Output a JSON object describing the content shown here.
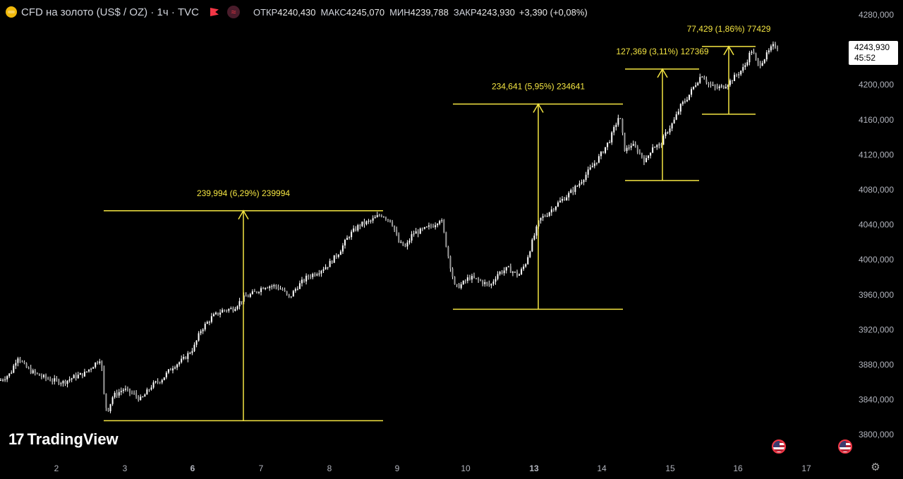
{
  "header": {
    "symbol": "CFD на золото (US$ / OZ) · 1ч · TVC",
    "open_label": "ОТКР",
    "open": "4240,430",
    "high_label": "МАКС",
    "high": "4245,070",
    "low_label": "МИН",
    "low": "4239,788",
    "close_label": "ЗАКР",
    "close": "4243,930",
    "change": "+3,390 (+0,08%)"
  },
  "price_tag": {
    "price": "4243,930",
    "countdown": "45:52"
  },
  "logo": {
    "text": "TradingView"
  },
  "colors": {
    "background": "#000000",
    "candle": "#ffffff",
    "measure": "#f5e642",
    "axis_text": "#b2b5be"
  },
  "icons": {
    "settings": "gear-icon",
    "event": "us-flag-icon",
    "alert": "flag-icon"
  },
  "chart_data": {
    "type": "candlestick",
    "ylim": [
      3780,
      4290
    ],
    "y_ticks": [
      "4280,000",
      "4240,000",
      "4200,000",
      "4160,000",
      "4120,000",
      "4080,000",
      "4040,000",
      "4000,000",
      "3960,000",
      "3920,000",
      "3880,000",
      "3840,000",
      "3800,000"
    ],
    "y_tick_values": [
      4280,
      4240,
      4200,
      4160,
      4120,
      4080,
      4040,
      4000,
      3960,
      3920,
      3880,
      3840,
      3800
    ],
    "x_ticks": [
      "2",
      "3",
      "6",
      "7",
      "8",
      "9",
      "10",
      "13",
      "14",
      "15",
      "16",
      "17"
    ],
    "x_tick_bold": [
      false,
      false,
      true,
      false,
      false,
      false,
      false,
      true,
      false,
      false,
      false,
      false
    ],
    "anchors": [
      [
        0,
        3862
      ],
      [
        15,
        3870
      ],
      [
        25,
        3890
      ],
      [
        35,
        3878
      ],
      [
        45,
        3872
      ],
      [
        60,
        3866
      ],
      [
        75,
        3862
      ],
      [
        90,
        3860
      ],
      [
        105,
        3866
      ],
      [
        120,
        3870
      ],
      [
        133,
        3880
      ],
      [
        143,
        3888
      ],
      [
        148,
        3840
      ],
      [
        152,
        3826
      ],
      [
        160,
        3844
      ],
      [
        175,
        3852
      ],
      [
        190,
        3846
      ],
      [
        200,
        3840
      ],
      [
        215,
        3856
      ],
      [
        230,
        3864
      ],
      [
        245,
        3878
      ],
      [
        260,
        3886
      ],
      [
        275,
        3900
      ],
      [
        285,
        3920
      ],
      [
        300,
        3934
      ],
      [
        315,
        3942
      ],
      [
        330,
        3944
      ],
      [
        345,
        3956
      ],
      [
        360,
        3962
      ],
      [
        375,
        3970
      ],
      [
        390,
        3970
      ],
      [
        400,
        3966
      ],
      [
        410,
        3956
      ],
      [
        420,
        3968
      ],
      [
        435,
        3980
      ],
      [
        450,
        3986
      ],
      [
        465,
        3994
      ],
      [
        480,
        4008
      ],
      [
        495,
        4028
      ],
      [
        510,
        4040
      ],
      [
        525,
        4044
      ],
      [
        540,
        4052
      ],
      [
        555,
        4044
      ],
      [
        565,
        4020
      ],
      [
        575,
        4014
      ],
      [
        585,
        4030
      ],
      [
        600,
        4034
      ],
      [
        615,
        4040
      ],
      [
        625,
        4048
      ],
      [
        635,
        4006
      ],
      [
        645,
        3968
      ],
      [
        655,
        3972
      ],
      [
        665,
        3980
      ],
      [
        680,
        3976
      ],
      [
        695,
        3970
      ],
      [
        705,
        3984
      ],
      [
        720,
        3990
      ],
      [
        735,
        3982
      ],
      [
        745,
        3996
      ],
      [
        755,
        4022
      ],
      [
        765,
        4046
      ],
      [
        775,
        4052
      ],
      [
        790,
        4064
      ],
      [
        805,
        4074
      ],
      [
        820,
        4086
      ],
      [
        835,
        4102
      ],
      [
        850,
        4118
      ],
      [
        865,
        4138
      ],
      [
        878,
        4166
      ],
      [
        886,
        4124
      ],
      [
        895,
        4132
      ],
      [
        905,
        4124
      ],
      [
        915,
        4112
      ],
      [
        925,
        4130
      ],
      [
        935,
        4130
      ],
      [
        945,
        4146
      ],
      [
        955,
        4158
      ],
      [
        965,
        4176
      ],
      [
        975,
        4186
      ],
      [
        985,
        4200
      ],
      [
        995,
        4212
      ],
      [
        1005,
        4200
      ],
      [
        1015,
        4196
      ],
      [
        1025,
        4198
      ],
      [
        1035,
        4204
      ],
      [
        1045,
        4212
      ],
      [
        1055,
        4220
      ],
      [
        1065,
        4240
      ],
      [
        1075,
        4222
      ],
      [
        1085,
        4232
      ],
      [
        1095,
        4244
      ],
      [
        1105,
        4244
      ]
    ],
    "measurements": [
      {
        "label": "239,994 (6,29%) 239994",
        "x_start": "3",
        "x_end": "9",
        "low": 3816.0,
        "high": 4056.0
      },
      {
        "label": "234,641 (5,95%) 234641",
        "x_start": "10",
        "x_end": "14",
        "low": 3943.4,
        "high": 4178.0
      },
      {
        "label": "127,369 (3,11%) 127369",
        "x_start": "14",
        "x_end": "15",
        "low": 4090.6,
        "high": 4218.0
      },
      {
        "label": "77,429 (1,86%) 77429",
        "x_start": "15",
        "x_end": "16",
        "low": 4166.4,
        "high": 4243.8
      }
    ],
    "last_price": 4243.93
  }
}
